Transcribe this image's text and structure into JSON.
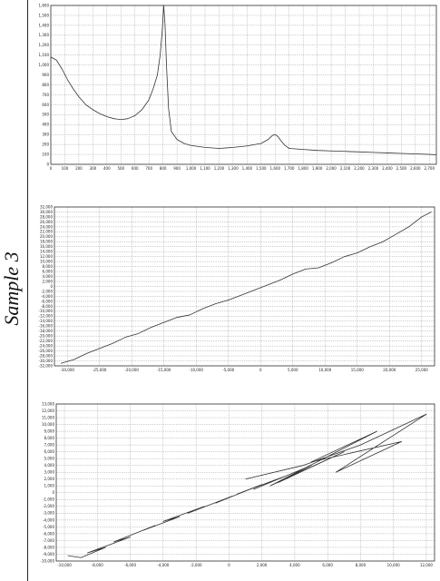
{
  "side_label": "Sample 3",
  "chart_data": [
    {
      "type": "line",
      "title": "",
      "xlabel": "",
      "ylabel": "",
      "xlim": [
        0,
        2750
      ],
      "ylim": [
        0,
        1600
      ],
      "x_ticks": [
        0,
        100,
        200,
        300,
        400,
        500,
        600,
        700,
        800,
        900,
        1000,
        1100,
        1200,
        1300,
        1400,
        1500,
        1600,
        1700,
        1800,
        1900,
        2000,
        2100,
        2200,
        2300,
        2400,
        2500,
        2600,
        2700
      ],
      "y_ticks": [
        0,
        100,
        200,
        300,
        400,
        500,
        600,
        700,
        800,
        900,
        1000,
        1100,
        1200,
        1300,
        1400,
        1500,
        1600
      ],
      "x_tick_labels": [
        "0",
        "100",
        "200",
        "300",
        "400",
        "500",
        "600",
        "700",
        "800",
        "900",
        "1,000",
        "1,100",
        "1,200",
        "1,300",
        "1,400",
        "1,500",
        "1,600",
        "1,700",
        "1,800",
        "1,900",
        "2,000",
        "2,100",
        "2,200",
        "2,300",
        "2,400",
        "2,500",
        "2,600",
        "2,700"
      ],
      "y_tick_labels": [
        "0",
        "100",
        "200",
        "300",
        "400",
        "500",
        "600",
        "700",
        "800",
        "900",
        "1,000",
        "1,100",
        "1,200",
        "1,300",
        "1,400",
        "1,500",
        "1,600"
      ],
      "grid": true,
      "line_color": "#333333",
      "series": [
        {
          "x": [
            0,
            40,
            80,
            120,
            160,
            200,
            250,
            300,
            350,
            400,
            450,
            500,
            550,
            600,
            650,
            700,
            730,
            760,
            780,
            795,
            805,
            815,
            825,
            840,
            860,
            900,
            950,
            1000,
            1100,
            1200,
            1300,
            1400,
            1500,
            1550,
            1580,
            1600,
            1620,
            1640,
            1670,
            1700,
            1800,
            1900,
            2000,
            2100,
            2200,
            2300,
            2400,
            2500,
            2600,
            2700,
            2750
          ],
          "y": [
            1080,
            1050,
            960,
            850,
            760,
            680,
            600,
            550,
            510,
            480,
            460,
            450,
            460,
            490,
            550,
            650,
            760,
            900,
            1100,
            1350,
            1600,
            1400,
            1000,
            560,
            330,
            250,
            210,
            190,
            170,
            160,
            170,
            185,
            210,
            250,
            290,
            300,
            280,
            240,
            190,
            160,
            150,
            140,
            135,
            130,
            125,
            120,
            115,
            110,
            105,
            100,
            95
          ]
        }
      ]
    },
    {
      "type": "line",
      "title": "",
      "xlabel": "",
      "ylabel": "",
      "xlim": [
        -32000,
        27000
      ],
      "ylim": [
        -32000,
        32000
      ],
      "x_ticks": [
        -30000,
        -25000,
        -20000,
        -15000,
        -10000,
        -5000,
        0,
        5000,
        10000,
        15000,
        20000,
        25000
      ],
      "y_ticks": [
        -32000,
        -30000,
        -28000,
        -26000,
        -24000,
        -22000,
        -20000,
        -18000,
        -16000,
        -14000,
        -12000,
        -10000,
        -8000,
        -6000,
        -4000,
        -2000,
        0,
        2000,
        4000,
        6000,
        8000,
        10000,
        12000,
        14000,
        16000,
        18000,
        20000,
        22000,
        24000,
        26000,
        28000,
        30000,
        32000
      ],
      "x_tick_labels": [
        "-30,000",
        "-25,000",
        "-20,000",
        "-15,000",
        "-10,000",
        "-5,000",
        "0",
        "5,000",
        "10,000",
        "15,000",
        "20,000",
        "25,000"
      ],
      "y_tick_labels": [
        "-32,000",
        "-30,000",
        "-28,000",
        "-26,000",
        "-24,000",
        "-22,000",
        "-20,000",
        "-18,000",
        "-16,000",
        "-14,000",
        "-12,000",
        "-10,000",
        "-8,000",
        "-6,000",
        "-4,000",
        "-2,000",
        "0",
        "2,000",
        "4,000",
        "6,000",
        "8,000",
        "10,000",
        "12,000",
        "14,000",
        "16,000",
        "18,000",
        "20,000",
        "22,000",
        "24,000",
        "26,000",
        "28,000",
        "30,000",
        "32,000"
      ],
      "grid": true,
      "line_color": "#333333",
      "series": [
        {
          "x": [
            -31000,
            -29000,
            -27000,
            -25000,
            -23000,
            -21000,
            -19000,
            -17000,
            -15000,
            -13000,
            -11000,
            -9000,
            -7000,
            -5000,
            -3000,
            -1000,
            1000,
            3000,
            5000,
            7000,
            9000,
            11000,
            13000,
            15000,
            17000,
            19000,
            21000,
            23000,
            25000,
            26500
          ],
          "y": [
            -31000,
            -29500,
            -27000,
            -25000,
            -23000,
            -20500,
            -19000,
            -16500,
            -14500,
            -12500,
            -11500,
            -9000,
            -7000,
            -5500,
            -3500,
            -1500,
            500,
            2500,
            5000,
            7000,
            7500,
            9500,
            12000,
            13500,
            16000,
            18000,
            21000,
            24000,
            28000,
            30000
          ]
        }
      ]
    },
    {
      "type": "line",
      "title": "",
      "xlabel": "",
      "ylabel": "",
      "xlim": [
        -10500,
        12500
      ],
      "ylim": [
        -10000,
        13000
      ],
      "x_ticks": [
        -10000,
        -8000,
        -6000,
        -4000,
        -2000,
        0,
        2000,
        4000,
        6000,
        8000,
        10000,
        12000
      ],
      "y_ticks": [
        -10000,
        -9000,
        -8000,
        -7000,
        -6000,
        -5000,
        -4000,
        -3000,
        -2000,
        -1000,
        0,
        1000,
        2000,
        3000,
        4000,
        5000,
        6000,
        7000,
        8000,
        9000,
        10000,
        11000,
        12000,
        13000
      ],
      "x_tick_labels": [
        "-10,000",
        "-8,000",
        "-6,000",
        "-4,000",
        "-2,000",
        "0",
        "2,000",
        "4,000",
        "6,000",
        "8,000",
        "10,000",
        "12,000"
      ],
      "y_tick_labels": [
        "-10,000",
        "-9,000",
        "-8,000",
        "-7,000",
        "-6,000",
        "-5,000",
        "-4,000",
        "-3,000",
        "-2,000",
        "-1,000",
        "0",
        "1,000",
        "2,000",
        "3,000",
        "4,000",
        "5,000",
        "6,000",
        "7,000",
        "8,000",
        "9,000",
        "10,000",
        "11,000",
        "12,000",
        "13,000"
      ],
      "grid": true,
      "line_color": "#333333",
      "series": [
        {
          "x": [
            -9800,
            -9000,
            -7500,
            -8600,
            -6000,
            -7000,
            -4500,
            -5200,
            -3000,
            -4000,
            -1500,
            -2500,
            200,
            -800,
            2000,
            500,
            3500,
            1500,
            5000,
            3000,
            7000,
            2500,
            9000,
            5000,
            10500,
            6500,
            12000,
            8000,
            4500,
            1000
          ],
          "y": [
            -9200,
            -9500,
            -8000,
            -8800,
            -6500,
            -7200,
            -4800,
            -5500,
            -3500,
            -4200,
            -2000,
            -3000,
            -500,
            -1500,
            1200,
            -200,
            2500,
            500,
            4000,
            1500,
            6000,
            1000,
            9000,
            4500,
            7500,
            3000,
            11500,
            7000,
            4000,
            2000
          ]
        }
      ]
    }
  ]
}
